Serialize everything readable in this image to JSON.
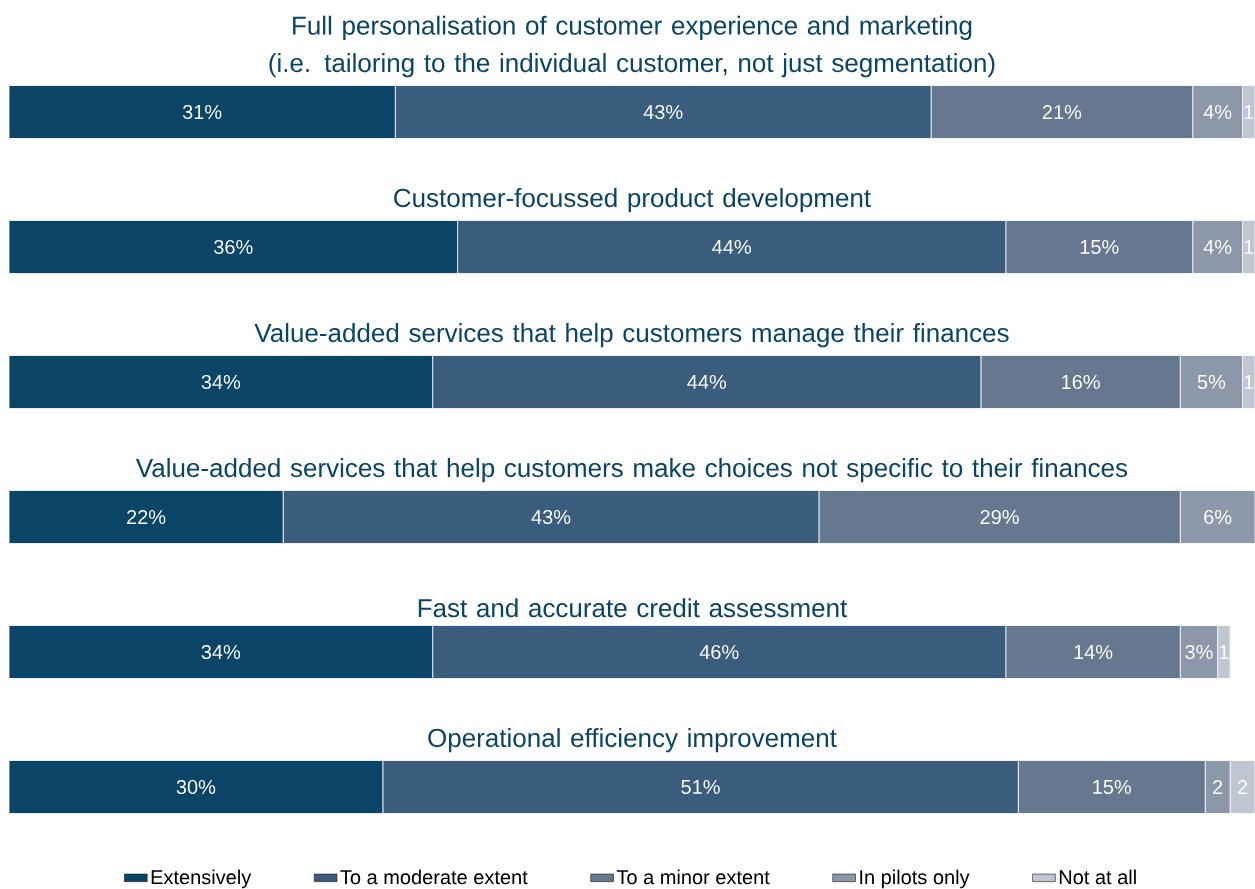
{
  "chart_data": {
    "type": "bar",
    "orientation": "horizontal",
    "stacked": true,
    "categories": [
      "Full personalisation of customer experience and marketing (i.e. tailoring to the individual customer, not just segmentation)",
      "Customer-focussed product development",
      "Value-added services that help customers manage their finances",
      "Value-added services that help customers make choices not specific to their finances",
      "Fast and accurate credit assessment",
      "Operational efficiency improvement"
    ],
    "series": [
      {
        "name": "Extensively",
        "color": "#0a4466",
        "values": [
          31,
          36,
          34,
          22,
          34,
          30
        ],
        "value_labels": [
          "31%",
          "36%",
          "34%",
          "22%",
          "34%",
          "30%"
        ]
      },
      {
        "name": "To a moderate extent",
        "color": "#3a5d7e",
        "values": [
          43,
          44,
          44,
          43,
          46,
          51
        ],
        "value_labels": [
          "43%",
          "44%",
          "44%",
          "43%",
          "46%",
          "51%"
        ]
      },
      {
        "name": "To a minor extent",
        "color": "#66788f",
        "values": [
          21,
          15,
          16,
          29,
          14,
          15
        ],
        "value_labels": [
          "21%",
          "15%",
          "16%",
          "29%",
          "14%",
          "15%"
        ]
      },
      {
        "name": "In pilots only",
        "color": "#8c97a9",
        "values": [
          4,
          4,
          5,
          6,
          3,
          2
        ],
        "value_labels": [
          "4%",
          "4%",
          "5%",
          "6%",
          "3%",
          "2"
        ]
      },
      {
        "name": "Not at all",
        "color": "#c0c5d2",
        "values": [
          1,
          1,
          1,
          null,
          1,
          2
        ],
        "value_labels": [
          "1",
          "1",
          "1",
          null,
          "1",
          "2"
        ]
      }
    ],
    "xlim": [
      0,
      100
    ],
    "tick_labels": false,
    "legend": "bottom"
  }
}
